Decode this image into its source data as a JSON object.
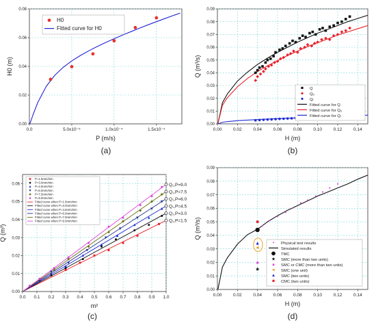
{
  "panel_labels": [
    "(a)",
    "(b)",
    "(c)",
    "(d)"
  ],
  "chart_data": [
    {
      "id": "a",
      "type": "scatter",
      "xlabel": "P (m/s)",
      "ylabel": "H0 (m)",
      "xlim": [
        0,
        0.00018
      ],
      "ylim": [
        0,
        0.08
      ],
      "xticks": [
        0,
        5e-05,
        0.0001,
        0.00015
      ],
      "xtick_labels": [
        "0.0",
        "5.0x10⁻⁵",
        "1.0x10⁻⁴",
        "1.5x10⁻⁴"
      ],
      "yticks": [
        0,
        0.02,
        0.04,
        0.06,
        0.08
      ],
      "ytick_labels": [
        "0.00",
        "0.02",
        "0.04",
        "0.06",
        "0.08"
      ],
      "grid": true,
      "legend_position": "top-left",
      "series": [
        {
          "name": "H0",
          "kind": "points",
          "color": "#e8332a",
          "x": [
            2.5e-05,
            5e-05,
            7.5e-05,
            0.0001,
            0.000125,
            0.00015
          ],
          "y": [
            0.031,
            0.0398,
            0.0487,
            0.0578,
            0.067,
            0.0738
          ]
        },
        {
          "name": "Fitted curve for H0",
          "kind": "line",
          "color": "#2323d6",
          "x": [
            5e-07,
            5e-06,
            1e-05,
            2e-05,
            3e-05,
            4e-05,
            5e-05,
            6e-05,
            7e-05,
            8e-05,
            9e-05,
            0.0001,
            0.00011,
            0.00012,
            0.00013,
            0.00014,
            0.00015,
            0.00016,
            0.00017,
            0.000178
          ],
          "y": [
            0.0,
            0.0075,
            0.015,
            0.0262,
            0.0338,
            0.0394,
            0.0438,
            0.0475,
            0.0508,
            0.0538,
            0.0566,
            0.0592,
            0.0618,
            0.0642,
            0.0666,
            0.0689,
            0.0711,
            0.0733,
            0.0754,
            0.0771
          ]
        }
      ]
    },
    {
      "id": "b",
      "type": "scatter",
      "xlabel": "H (m)",
      "ylabel": "Q (m³/s)",
      "xlim": [
        0,
        0.15
      ],
      "ylim": [
        0,
        0.09
      ],
      "xticks": [
        0,
        0.02,
        0.04,
        0.06,
        0.08,
        0.1,
        0.12,
        0.14
      ],
      "xtick_labels": [
        "0.00",
        "0.02",
        "0.04",
        "0.06",
        "0.08",
        "0.10",
        "0.12",
        "0.14"
      ],
      "yticks": [
        0,
        0.01,
        0.02,
        0.03,
        0.04,
        0.05,
        0.06,
        0.07,
        0.08,
        0.09
      ],
      "ytick_labels": [
        "0.00",
        "0.01",
        "0.02",
        "0.03",
        "0.04",
        "0.05",
        "0.06",
        "0.07",
        "0.08",
        "0.09"
      ],
      "grid": true,
      "legend_position": "bottom-right",
      "series": [
        {
          "name": "Q",
          "kind": "points",
          "marker": "square",
          "color": "#111111",
          "x": [
            0.038,
            0.04,
            0.042,
            0.045,
            0.048,
            0.05,
            0.053,
            0.056,
            0.058,
            0.062,
            0.065,
            0.068,
            0.072,
            0.075,
            0.078,
            0.082,
            0.085,
            0.088,
            0.092,
            0.095,
            0.098,
            0.102,
            0.105,
            0.108,
            0.112,
            0.116,
            0.12,
            0.124,
            0.128,
            0.132
          ],
          "y": [
            0.04,
            0.042,
            0.044,
            0.045,
            0.048,
            0.05,
            0.051,
            0.053,
            0.056,
            0.058,
            0.059,
            0.061,
            0.063,
            0.065,
            0.064,
            0.067,
            0.069,
            0.068,
            0.071,
            0.072,
            0.07,
            0.074,
            0.075,
            0.073,
            0.076,
            0.077,
            0.079,
            0.08,
            0.082,
            0.084
          ]
        },
        {
          "name": "Qₒ",
          "kind": "points",
          "marker": "diamond",
          "color": "#e8232a",
          "x": [
            0.038,
            0.04,
            0.043,
            0.046,
            0.048,
            0.051,
            0.054,
            0.057,
            0.06,
            0.063,
            0.066,
            0.07,
            0.073,
            0.076,
            0.08,
            0.083,
            0.087,
            0.09,
            0.094,
            0.097,
            0.1,
            0.104,
            0.108,
            0.112,
            0.116,
            0.12,
            0.124,
            0.128,
            0.132
          ],
          "y": [
            0.034,
            0.037,
            0.039,
            0.041,
            0.043,
            0.045,
            0.046,
            0.048,
            0.049,
            0.051,
            0.052,
            0.054,
            0.055,
            0.057,
            0.056,
            0.059,
            0.06,
            0.062,
            0.061,
            0.063,
            0.064,
            0.066,
            0.067,
            0.066,
            0.069,
            0.07,
            0.072,
            0.073,
            0.075
          ]
        },
        {
          "name": "Qᵢ",
          "kind": "points",
          "marker": "circle",
          "color": "#1f2bd1",
          "x": [
            0.038,
            0.042,
            0.046,
            0.05,
            0.054,
            0.058,
            0.062,
            0.066,
            0.07,
            0.074,
            0.078,
            0.082,
            0.086,
            0.09,
            0.094,
            0.098,
            0.102,
            0.106,
            0.11,
            0.114,
            0.118,
            0.122,
            0.126,
            0.13,
            0.133
          ],
          "y": [
            0.0028,
            0.003,
            0.0032,
            0.0034,
            0.0035,
            0.0037,
            0.0039,
            0.004,
            0.0042,
            0.0043,
            0.0045,
            0.0047,
            0.0049,
            0.005,
            0.0052,
            0.0054,
            0.0056,
            0.0058,
            0.006,
            0.0062,
            0.0063,
            0.0065,
            0.0067,
            0.0069,
            0.007
          ]
        },
        {
          "name": "Fitted curve for Q",
          "kind": "line",
          "color": "#111111",
          "x": [
            0.0005,
            0.005,
            0.01,
            0.02,
            0.03,
            0.04,
            0.05,
            0.06,
            0.07,
            0.08,
            0.09,
            0.1,
            0.11,
            0.12,
            0.13,
            0.14,
            0.15
          ],
          "y": [
            0.0,
            0.0165,
            0.0235,
            0.0335,
            0.0405,
            0.0465,
            0.0515,
            0.056,
            0.06,
            0.064,
            0.0675,
            0.071,
            0.074,
            0.077,
            0.08,
            0.0825,
            0.085
          ]
        },
        {
          "name": "Fitted curve for Qₒ",
          "kind": "line",
          "color": "#e8232a",
          "x": [
            0.0005,
            0.005,
            0.01,
            0.02,
            0.03,
            0.04,
            0.05,
            0.06,
            0.07,
            0.08,
            0.09,
            0.1,
            0.11,
            0.12,
            0.13,
            0.14,
            0.15
          ],
          "y": [
            0.0,
            0.0145,
            0.0205,
            0.029,
            0.0355,
            0.041,
            0.0455,
            0.0495,
            0.0535,
            0.057,
            0.0605,
            0.0635,
            0.0665,
            0.0695,
            0.072,
            0.0745,
            0.077
          ]
        },
        {
          "name": "Fitted curve for Qᵢ",
          "kind": "line",
          "color": "#1f2bd1",
          "x": [
            0.0005,
            0.005,
            0.01,
            0.02,
            0.04,
            0.06,
            0.08,
            0.1,
            0.12,
            0.14,
            0.15
          ],
          "y": [
            0.0,
            0.0012,
            0.0018,
            0.0025,
            0.0034,
            0.0041,
            0.0047,
            0.0053,
            0.0059,
            0.0065,
            0.0068
          ]
        }
      ]
    },
    {
      "id": "c",
      "type": "line",
      "xlabel": "m²",
      "ylabel": "Q (m³)",
      "xlim": [
        0,
        1.0
      ],
      "ylim": [
        0,
        0.065
      ],
      "xticks": [
        0,
        0.1,
        0.2,
        0.3,
        0.4,
        0.5,
        0.6,
        0.7,
        0.8,
        0.9,
        1.0
      ],
      "xtick_labels": [
        "0.0",
        "0.1",
        "0.2",
        "0.3",
        "0.4",
        "0.5",
        "0.6",
        "0.7",
        "0.8",
        "0.9",
        "1.0"
      ],
      "yticks": [
        0,
        0.01,
        0.02,
        0.03,
        0.04,
        0.05,
        0.06
      ],
      "ytick_labels": [
        "0.00",
        "0.01",
        "0.02",
        "0.03",
        "0.04",
        "0.05",
        "0.06"
      ],
      "grid": true,
      "legend_position": "top-left",
      "legend_entries": [
        "P=1.5mm/min",
        "P=3.0mm/min",
        "P=4.5mm/min",
        "P=6.0mm/min",
        "P=7.5mm/min",
        "P=9.0mm/min",
        "Fitted curve when P=1.5mm/min",
        "Fitted curve when P=3.0mm/min",
        "Fitted curve when P=4.5mm/min",
        "Fitted curve when P=6.0mm/min",
        "Fitted curve when P=7.5mm/min",
        "Fitted curve when P=9.0mm/min"
      ],
      "end_labels": [
        "Q₁,P=9.0",
        "Q₁,P=7.5",
        "Q₁,P=6.0",
        "Q₁,P=4.5",
        "Q₁,P=3.0",
        "Q₁,P=1.5"
      ],
      "end_values": [
        0.0595,
        0.0555,
        0.0515,
        0.0475,
        0.0435,
        0.0395
      ],
      "series": [
        {
          "name": "P=1.5mm/min",
          "color": "#e8232a",
          "marker": "square",
          "slope": 0.0395,
          "x": [
            0.05,
            0.12,
            0.2,
            0.3,
            0.4,
            0.5,
            0.6,
            0.7,
            0.8,
            0.95
          ],
          "y": [
            0.003,
            0.006,
            0.009,
            0.012,
            0.016,
            0.02,
            0.023,
            0.027,
            0.031,
            0.0375
          ]
        },
        {
          "name": "P=3.0mm/min",
          "color": "#111111",
          "marker": "circle",
          "slope": 0.0435,
          "x": [
            0.05,
            0.12,
            0.2,
            0.3,
            0.42,
            0.55,
            0.65,
            0.78,
            0.88,
            0.97
          ],
          "y": [
            0.003,
            0.006,
            0.009,
            0.013,
            0.018,
            0.025,
            0.029,
            0.034,
            0.037,
            0.042
          ]
        },
        {
          "name": "P=4.5mm/min",
          "color": "#1f2bd1",
          "marker": "triangle",
          "slope": 0.0475,
          "x": [
            0.05,
            0.12,
            0.2,
            0.3,
            0.42,
            0.55,
            0.66,
            0.78,
            0.88,
            0.97
          ],
          "y": [
            0.003,
            0.006,
            0.01,
            0.014,
            0.02,
            0.026,
            0.031,
            0.037,
            0.041,
            0.046
          ]
        },
        {
          "name": "P=6.0mm/min",
          "color": "#1f2b8a",
          "marker": "tri-down",
          "slope": 0.0515,
          "x": [
            0.05,
            0.12,
            0.2,
            0.32,
            0.45,
            0.58,
            0.68,
            0.8,
            0.9,
            0.97
          ],
          "y": [
            0.003,
            0.007,
            0.011,
            0.016,
            0.023,
            0.03,
            0.035,
            0.041,
            0.046,
            0.05
          ]
        },
        {
          "name": "P=7.5mm/min",
          "color": "#6b6b10",
          "marker": "diamond",
          "slope": 0.0555,
          "x": [
            0.05,
            0.12,
            0.22,
            0.32,
            0.46,
            0.6,
            0.7,
            0.82,
            0.9,
            0.97
          ],
          "y": [
            0.003,
            0.007,
            0.012,
            0.018,
            0.025,
            0.033,
            0.039,
            0.045,
            0.05,
            0.054
          ]
        },
        {
          "name": "P=9.0mm/min",
          "color": "#e040d8",
          "marker": "circle",
          "slope": 0.0595,
          "x": [
            0.05,
            0.12,
            0.22,
            0.32,
            0.46,
            0.6,
            0.7,
            0.82,
            0.9,
            0.97
          ],
          "y": [
            0.003,
            0.007,
            0.013,
            0.019,
            0.027,
            0.036,
            0.041,
            0.048,
            0.053,
            0.058
          ]
        }
      ]
    },
    {
      "id": "d",
      "type": "scatter",
      "xlabel": "H (m)",
      "ylabel": "Q (m³/s)",
      "xlim": [
        0,
        0.15
      ],
      "ylim": [
        0,
        0.09
      ],
      "xticks": [
        0,
        0.02,
        0.04,
        0.06,
        0.08,
        0.1,
        0.12,
        0.14
      ],
      "xtick_labels": [
        "0.00",
        "0.02",
        "0.04",
        "0.06",
        "0.08",
        "0.10",
        "0.12",
        "0.14"
      ],
      "yticks": [
        0,
        0.01,
        0.02,
        0.03,
        0.04,
        0.05,
        0.06,
        0.07,
        0.08,
        0.09
      ],
      "ytick_labels": [
        "0.00",
        "0.01",
        "0.02",
        "0.03",
        "0.04",
        "0.05",
        "0.06",
        "0.07",
        "0.08",
        "0.09"
      ],
      "grid": true,
      "legend_position": "bottom-right",
      "series": [
        {
          "name": "Physical test results",
          "kind": "points",
          "marker": "small-dot",
          "color": "#e040d8",
          "x": [
            0.045,
            0.052,
            0.06,
            0.068,
            0.075,
            0.083,
            0.09,
            0.098,
            0.105,
            0.112,
            0.12
          ],
          "y": [
            0.047,
            0.051,
            0.054,
            0.057,
            0.06,
            0.064,
            0.066,
            0.069,
            0.072,
            0.075,
            0.078
          ]
        },
        {
          "name": "Simulated results",
          "kind": "line",
          "color": "#111111",
          "x": [
            0.0005,
            0.005,
            0.01,
            0.02,
            0.03,
            0.04,
            0.05,
            0.06,
            0.07,
            0.08,
            0.09,
            0.1,
            0.11,
            0.12,
            0.13,
            0.14,
            0.15
          ],
          "y": [
            0.0,
            0.0165,
            0.0235,
            0.0335,
            0.0405,
            0.0445,
            0.05,
            0.0545,
            0.0585,
            0.062,
            0.0655,
            0.069,
            0.072,
            0.075,
            0.078,
            0.0815,
            0.0845
          ]
        },
        {
          "name": "TMC",
          "kind": "points",
          "marker": "big-circle",
          "color": "#111111",
          "x": [
            0.04
          ],
          "y": [
            0.044
          ]
        },
        {
          "name": "SMC (more than two units)",
          "kind": "points",
          "marker": "star",
          "color": "#111111",
          "x": [
            0.04
          ],
          "y": [
            0.015
          ]
        },
        {
          "name": "SMC or CMC (more than two units)",
          "kind": "points",
          "marker": "triangle",
          "color": "#e040d8",
          "x": [
            0.04
          ],
          "y": [
            0.02
          ]
        },
        {
          "name": "SMC (one unit)",
          "kind": "points",
          "marker": "tri-left",
          "color": "#e8a020",
          "x": [
            0.04
          ],
          "y": [
            0.031
          ]
        },
        {
          "name": "SMC (two units)",
          "kind": "points",
          "marker": "triangle",
          "color": "#1f2bd1",
          "x": [
            0.04
          ],
          "y": [
            0.034
          ]
        },
        {
          "name": "CMC (two units)",
          "kind": "points",
          "marker": "square",
          "color": "#e8232a",
          "x": [
            0.04
          ],
          "y": [
            0.05
          ]
        }
      ],
      "highlight": {
        "kind": "ellipse",
        "color": "#f0a020",
        "cx": 0.0405,
        "cy": 0.033,
        "rx": 0.0045,
        "ry": 0.005
      }
    }
  ]
}
